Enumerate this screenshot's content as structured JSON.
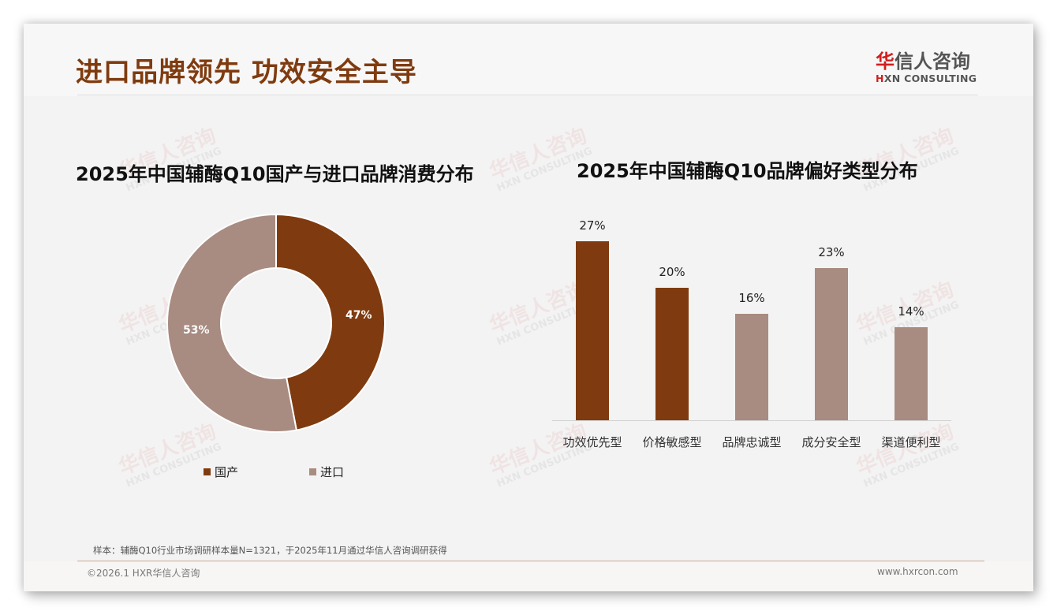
{
  "header": {
    "title": "进口品牌领先 功效安全主导",
    "logo_cn_accent": "华",
    "logo_cn_rest": "信人咨询",
    "logo_en_accent": "H",
    "logo_en_rest": "XN CONSULTING"
  },
  "watermark": {
    "cn": "华信人咨询",
    "en": "HXN CONSULTING"
  },
  "colors": {
    "domestic": "#7f3b0f",
    "imported": "#a88b81",
    "title": "#7f3b0f",
    "logo_red": "#d11f1f"
  },
  "donut": {
    "title": "2025年中国辅酶Q10国产与进口品牌消费分布",
    "slices": [
      {
        "label": "国产",
        "value": 47,
        "display": "47%",
        "color": "#7f3b0f"
      },
      {
        "label": "进口",
        "value": 53,
        "display": "53%",
        "color": "#a88b81"
      }
    ]
  },
  "bars": {
    "title": "2025年中国辅酶Q10品牌偏好类型分布",
    "items": [
      {
        "label": "功效优先型",
        "value": 27,
        "display": "27%",
        "color": "#7f3b0f"
      },
      {
        "label": "价格敏感型",
        "value": 20,
        "display": "20%",
        "color": "#7f3b0f"
      },
      {
        "label": "品牌忠诚型",
        "value": 16,
        "display": "16%",
        "color": "#a88b81"
      },
      {
        "label": "成分安全型",
        "value": 23,
        "display": "23%",
        "color": "#a88b81"
      },
      {
        "label": "渠道便利型",
        "value": 14,
        "display": "14%",
        "color": "#a88b81"
      }
    ]
  },
  "footer": {
    "note": "样本：辅酶Q10行业市场调研样本量N=1321，于2025年11月通过华信人咨询调研获得",
    "copyright": "©2026.1 HXR华信人咨询",
    "website": "www.hxrcon.com"
  },
  "chart_data": [
    {
      "type": "pie",
      "title": "2025年中国辅酶Q10国产与进口品牌消费分布",
      "categories": [
        "国产",
        "进口"
      ],
      "values": [
        47,
        53
      ],
      "unit": "%",
      "donut": true,
      "legend_position": "bottom"
    },
    {
      "type": "bar",
      "title": "2025年中国辅酶Q10品牌偏好类型分布",
      "categories": [
        "功效优先型",
        "价格敏感型",
        "品牌忠诚型",
        "成分安全型",
        "渠道便利型"
      ],
      "values": [
        27,
        20,
        16,
        23,
        14
      ],
      "unit": "%",
      "xlabel": "",
      "ylabel": "",
      "grid": false,
      "data_labels": true
    }
  ]
}
